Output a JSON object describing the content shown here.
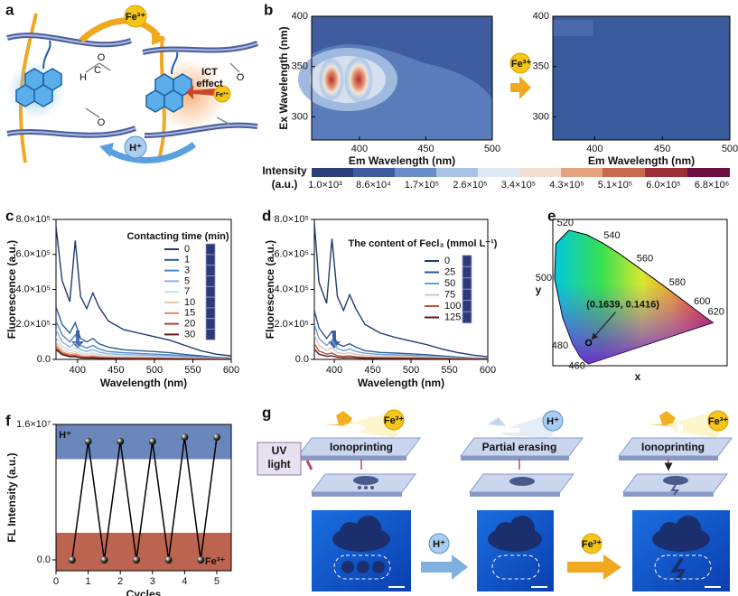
{
  "panel_a": {
    "label": "a",
    "top_ion": "Fe³⁺",
    "effect": [
      "ICT",
      "effect"
    ],
    "bound_ion": "Fe³⁺",
    "bottom_ion": "H⁺",
    "atoms": [
      "O",
      "C",
      "H"
    ]
  },
  "panel_b": {
    "label": "b",
    "plots": [
      {
        "xlim": [
          364,
          500
        ],
        "ylim": [
          277,
          400
        ],
        "xticks": [
          400,
          450,
          500
        ],
        "yticks": [
          300,
          350,
          400
        ],
        "x_label": "Em Wavelength (nm)",
        "y_label": "Ex Wavelength (nm)"
      },
      {
        "xlim": [
          369,
          500
        ],
        "ylim": [
          277,
          400
        ],
        "xticks": [
          400,
          450,
          500
        ],
        "yticks": [
          300,
          350,
          400
        ],
        "x_label": "Em Wavelength (nm)"
      }
    ],
    "arrow_label": "Fe³⁺",
    "colorbar": {
      "title": [
        "Intensity",
        "(a.u.)"
      ],
      "ticks": [
        {
          "value": 1000,
          "label": "1.0×10³"
        },
        {
          "value": 86000,
          "label": "8.6×10⁴"
        },
        {
          "value": 170000,
          "label": "1.7×10⁵"
        },
        {
          "value": 260000,
          "label": "2.6×10⁵"
        },
        {
          "value": 340000,
          "label": "3.4×10⁵"
        },
        {
          "value": 430000,
          "label": "4.3×10⁵"
        },
        {
          "value": 510000,
          "label": "5.1×10⁵"
        },
        {
          "value": 600000,
          "label": "6.0×10⁵"
        },
        {
          "value": 6800000,
          "label": "6.8×10⁶"
        }
      ]
    }
  },
  "panel_e": {
    "label": "e",
    "x_label": "x",
    "y_label": "y",
    "wavelength_labels": [
      "520",
      "540",
      "560",
      "580",
      "600",
      "620",
      "500",
      "480",
      "460"
    ],
    "point": [
      0.1639,
      0.1416
    ],
    "annotation": "(0.1639, 0.1416)"
  },
  "panel_g": {
    "label": "g",
    "steps": [
      "Ionoprinting",
      "Partial erasing",
      "Ionoprinting"
    ],
    "uv": [
      "UV",
      "light"
    ],
    "ions": [
      "Fe³⁺",
      "H⁺",
      "Fe³⁺"
    ],
    "arrows": [
      "H⁺",
      "Fe³⁺"
    ]
  },
  "chart_data": [
    {
      "panel": "c",
      "type": "line",
      "x_label": "Wavelength (nm)",
      "y_label": "Fluorescence (a.u.)",
      "legend_title": "Contacting time (min)",
      "x": [
        372,
        380,
        390,
        397,
        404,
        412,
        420,
        428,
        440,
        460,
        480,
        500,
        520,
        540,
        560,
        580,
        600
      ],
      "xlim": [
        372,
        600
      ],
      "ylim": [
        0,
        800000
      ],
      "xticks": [
        400,
        450,
        500,
        550,
        600
      ],
      "yticks": [
        {
          "value": 0,
          "label": "0.0"
        },
        {
          "value": 200000,
          "label": "2.0×10⁵"
        },
        {
          "value": 400000,
          "label": "4.0×10⁵"
        },
        {
          "value": 600000,
          "label": "6.0×10⁵"
        },
        {
          "value": 800000,
          "label": "8.0×10⁵"
        }
      ],
      "series": [
        {
          "name": "0",
          "color": "#1f3c6e",
          "values": [
            760000,
            450000,
            330000,
            680000,
            360000,
            290000,
            380000,
            300000,
            220000,
            170000,
            150000,
            130000,
            110000,
            80000,
            50000,
            30000,
            20000
          ]
        },
        {
          "name": "1",
          "color": "#2d5a95",
          "values": [
            300000,
            200000,
            150000,
            210000,
            120000,
            100000,
            120000,
            90000,
            70000,
            55000,
            50000,
            45000,
            38000,
            28000,
            20000,
            12000,
            8000
          ]
        },
        {
          "name": "3",
          "color": "#4d86c4",
          "values": [
            220000,
            140000,
            100000,
            140000,
            80000,
            65000,
            80000,
            60000,
            45000,
            38000,
            34000,
            30000,
            26000,
            20000,
            14000,
            9000,
            6000
          ]
        },
        {
          "name": "5",
          "color": "#8ab4dc",
          "values": [
            170000,
            100000,
            70000,
            95000,
            55000,
            45000,
            55000,
            42000,
            32000,
            28000,
            25000,
            22000,
            19000,
            14000,
            10000,
            6000,
            4000
          ]
        },
        {
          "name": "7",
          "color": "#c9dcea",
          "values": [
            130000,
            75000,
            50000,
            65000,
            38000,
            30000,
            37000,
            28000,
            22000,
            19000,
            17000,
            15000,
            13000,
            10000,
            7000,
            4500,
            3000
          ]
        },
        {
          "name": "10",
          "color": "#e8c8b0",
          "values": [
            100000,
            55000,
            36000,
            45000,
            26000,
            21000,
            25000,
            19000,
            15000,
            13000,
            12000,
            10000,
            9000,
            7000,
            5000,
            3000,
            2000
          ]
        },
        {
          "name": "15",
          "color": "#d9886a",
          "values": [
            80000,
            42000,
            27000,
            32000,
            18000,
            15000,
            18000,
            14000,
            11000,
            9000,
            8000,
            7000,
            6000,
            5000,
            3500,
            2000,
            1500
          ]
        },
        {
          "name": "20",
          "color": "#b0442e",
          "values": [
            65000,
            33000,
            20000,
            22000,
            13000,
            10000,
            12000,
            9000,
            7000,
            6000,
            5500,
            5000,
            4000,
            3000,
            2500,
            1500,
            1000
          ]
        },
        {
          "name": "30",
          "color": "#5c1a1a",
          "values": [
            55000,
            27000,
            15000,
            16000,
            9000,
            7000,
            8000,
            6000,
            5000,
            4000,
            3500,
            3000,
            2500,
            2000,
            1500,
            1000,
            800
          ]
        }
      ]
    },
    {
      "panel": "d",
      "type": "line",
      "x_label": "Wavelength (nm)",
      "y_label": "Fluorescence (a.u.)",
      "legend_title": "The content of Fecl₃ (mmol L⁻¹)",
      "x": [
        374,
        380,
        390,
        397,
        404,
        412,
        420,
        428,
        440,
        460,
        480,
        500,
        520,
        540,
        560,
        580,
        600
      ],
      "xlim": [
        374,
        600
      ],
      "ylim": [
        0,
        800000
      ],
      "xticks": [
        400,
        450,
        500,
        550,
        600
      ],
      "yticks": [
        {
          "value": 0,
          "label": "0.0"
        },
        {
          "value": 200000,
          "label": "2.0×10⁵"
        },
        {
          "value": 400000,
          "label": "4.0×10⁵"
        },
        {
          "value": 600000,
          "label": "6.0×10⁵"
        },
        {
          "value": 800000,
          "label": "8.0×10⁵"
        }
      ],
      "series": [
        {
          "name": "0",
          "color": "#1f3c6e",
          "values": [
            780000,
            440000,
            320000,
            690000,
            360000,
            280000,
            370000,
            290000,
            200000,
            150000,
            125000,
            105000,
            85000,
            60000,
            40000,
            25000,
            15000
          ]
        },
        {
          "name": "25",
          "color": "#2d5a95",
          "values": [
            280000,
            180000,
            120000,
            160000,
            90000,
            75000,
            90000,
            70000,
            50000,
            40000,
            36000,
            32000,
            27000,
            20000,
            14000,
            9000,
            6000
          ]
        },
        {
          "name": "50",
          "color": "#6aa0d4",
          "values": [
            200000,
            120000,
            80000,
            110000,
            62000,
            50000,
            60000,
            46000,
            35000,
            29000,
            26000,
            23000,
            20000,
            15000,
            10000,
            6500,
            4500
          ]
        },
        {
          "name": "75",
          "color": "#d8c5b5",
          "values": [
            140000,
            80000,
            52000,
            68000,
            40000,
            32000,
            38000,
            29000,
            22000,
            19000,
            17000,
            15000,
            13000,
            10000,
            7000,
            4500,
            3000
          ]
        },
        {
          "name": "100",
          "color": "#b5533c",
          "values": [
            90000,
            48000,
            30000,
            36000,
            21000,
            17000,
            20000,
            15000,
            12000,
            10000,
            9000,
            8000,
            7000,
            5500,
            4000,
            2500,
            1800
          ]
        },
        {
          "name": "125",
          "color": "#5c1a1a",
          "values": [
            60000,
            30000,
            18000,
            20000,
            12000,
            9000,
            10000,
            8000,
            6000,
            5000,
            4500,
            4000,
            3500,
            2800,
            2000,
            1400,
            1000
          ]
        }
      ]
    },
    {
      "panel": "f",
      "type": "line",
      "markers": true,
      "x_label": "Cycles",
      "y_label": "FL Intensity (a.u.)",
      "x": [
        0.5,
        1,
        1.5,
        2,
        2.5,
        3,
        3.5,
        4,
        4.5,
        5
      ],
      "values": [
        0,
        14000000,
        0,
        14000000,
        0,
        14000000,
        0,
        14500000,
        0,
        14500000
      ],
      "xlim": [
        0,
        5.45
      ],
      "ylim": [
        -1280000,
        16000000
      ],
      "xticks": [
        0,
        1,
        2,
        3,
        4,
        5
      ],
      "yticks": [
        {
          "value": 0,
          "label": "0.0"
        },
        {
          "value": 16000000,
          "label": "1.6×10⁷"
        }
      ],
      "color": "#000000",
      "bands": [
        {
          "label": "H⁺",
          "range": [
            11900000,
            16000000
          ],
          "color": "#5a7ab5"
        },
        {
          "label": "Fe³⁺",
          "range": [
            -1280000,
            3200000
          ],
          "color": "#b5533c"
        }
      ]
    }
  ]
}
